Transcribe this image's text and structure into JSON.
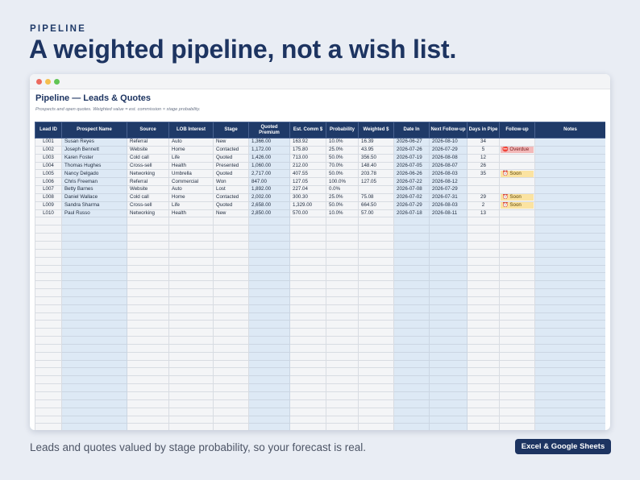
{
  "page": {
    "eyebrow": "PIPELINE",
    "headline": "A weighted pipeline, not a wish list.",
    "footer_text": "Leads and quotes valued by stage probability, so your forecast is real.",
    "badge": "Excel & Google Sheets"
  },
  "sheet": {
    "title": "Pipeline — Leads & Quotes",
    "subtitle": "Prospects and open quotes. Weighted value = est. commission × stage probability.",
    "columns": [
      "Lead ID",
      "Prospect Name",
      "Source",
      "LOB Interest",
      "Stage",
      "Quoted Premium",
      "Est. Comm $",
      "Probability",
      "Weighted $",
      "Date In",
      "Next Follow-up",
      "Days in Pipe",
      "Follow-up",
      "Notes"
    ],
    "rows": [
      [
        "L001",
        "Susan Reyes",
        "Referral",
        "Auto",
        "New",
        "1,366.00",
        "163.92",
        "10.0%",
        "16.39",
        "2026-06-27",
        "2026-08-10",
        "34",
        "",
        ""
      ],
      [
        "L002",
        "Joseph Bennett",
        "Website",
        "Home",
        "Contacted",
        "1,172.00",
        "175.80",
        "25.0%",
        "43.95",
        "2026-07-26",
        "2026-07-29",
        "5",
        "⛔ Overdue",
        ""
      ],
      [
        "L003",
        "Karen Foster",
        "Cold call",
        "Life",
        "Quoted",
        "1,426.00",
        "713.00",
        "50.0%",
        "356.50",
        "2026-07-19",
        "2026-08-08",
        "12",
        "",
        ""
      ],
      [
        "L004",
        "Thomas Hughes",
        "Cross-sell",
        "Health",
        "Presented",
        "1,060.00",
        "212.00",
        "70.0%",
        "148.40",
        "2026-07-05",
        "2026-08-07",
        "26",
        "",
        ""
      ],
      [
        "L005",
        "Nancy Delgado",
        "Networking",
        "Umbrella",
        "Quoted",
        "2,717.00",
        "407.55",
        "50.0%",
        "203.78",
        "2026-06-26",
        "2026-08-03",
        "35",
        "⏰ Soon",
        ""
      ],
      [
        "L006",
        "Chris Freeman",
        "Referral",
        "Commercial",
        "Won",
        "847.00",
        "127.05",
        "100.0%",
        "127.05",
        "2026-07-22",
        "2026-08-12",
        "",
        "",
        ""
      ],
      [
        "L007",
        "Betty Barnes",
        "Website",
        "Auto",
        "Lost",
        "1,892.00",
        "227.04",
        "0.0%",
        "",
        "2026-07-08",
        "2026-07-29",
        "",
        "",
        ""
      ],
      [
        "L008",
        "Daniel Wallace",
        "Cold call",
        "Home",
        "Contacted",
        "2,002.00",
        "300.30",
        "25.0%",
        "75.08",
        "2026-07-02",
        "2026-07-31",
        "29",
        "⏰ Soon",
        ""
      ],
      [
        "L009",
        "Sandra Sharma",
        "Cross-sell",
        "Life",
        "Quoted",
        "2,658.00",
        "1,329.00",
        "50.0%",
        "664.50",
        "2026-07-29",
        "2026-08-03",
        "2",
        "⏰ Soon",
        ""
      ],
      [
        "L010",
        "Paul Russo",
        "Networking",
        "Health",
        "New",
        "2,850.00",
        "570.00",
        "10.0%",
        "57.00",
        "2026-07-18",
        "2026-08-11",
        "13",
        "",
        ""
      ]
    ],
    "empty_rows": 27
  }
}
